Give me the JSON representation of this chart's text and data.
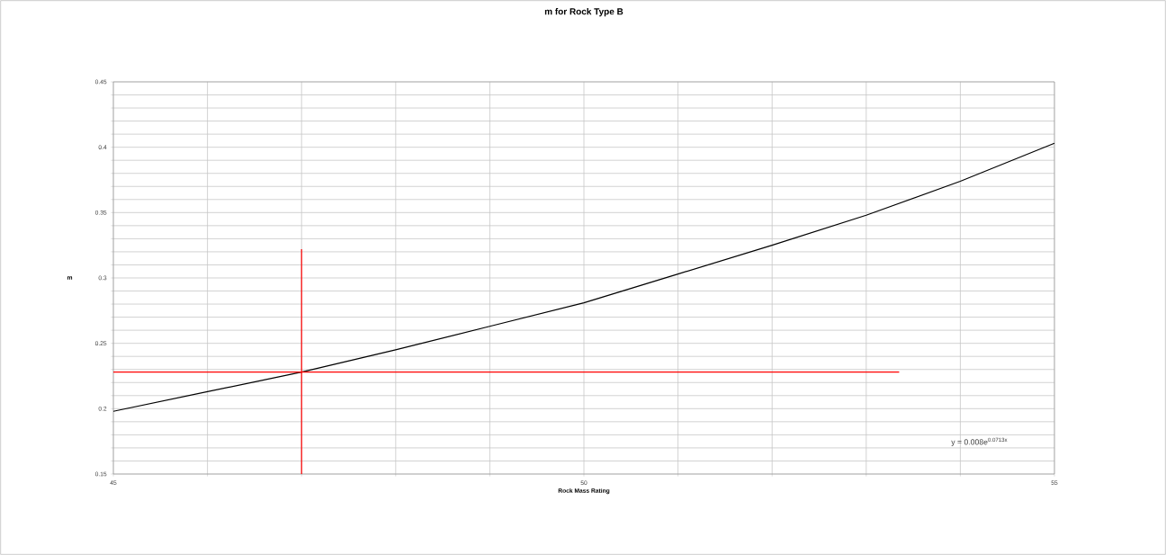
{
  "chart_data": {
    "type": "line",
    "title": "m for Rock Type B",
    "xlabel": "Rock Mass Rating",
    "ylabel": "m",
    "annotations": [
      "y = 0.008e$^{0.0713x}$"
    ],
    "xlim": [
      45,
      55
    ],
    "xticks": [
      45,
      {
        "value": 46,
        "label": null
      },
      {
        "value": 47,
        "label": null
      },
      {
        "value": 48,
        "label": null
      },
      {
        "value": 49,
        "label": null
      },
      50,
      {
        "value": 51,
        "label": null
      },
      {
        "value": 52,
        "label": null
      },
      {
        "value": 53,
        "label": null
      },
      {
        "value": 54,
        "label": null
      },
      55
    ],
    "ylim": [
      0.15,
      0.45
    ],
    "yticks": [
      0.15,
      {
        "value": 0.16,
        "label": null
      },
      {
        "value": 0.17,
        "label": null
      },
      {
        "value": 0.18,
        "label": null
      },
      {
        "value": 0.19,
        "label": null
      },
      0.2,
      {
        "value": 0.21,
        "label": null
      },
      {
        "value": 0.22,
        "label": null
      },
      {
        "value": 0.23,
        "label": null
      },
      {
        "value": 0.24,
        "label": null
      },
      0.25,
      {
        "value": 0.26,
        "label": null
      },
      {
        "value": 0.27,
        "label": null
      },
      {
        "value": 0.28,
        "label": null
      },
      {
        "value": 0.29,
        "label": null
      },
      0.3,
      {
        "value": 0.31,
        "label": null
      },
      {
        "value": 0.32,
        "label": null
      },
      {
        "value": 0.33,
        "label": null
      },
      {
        "value": 0.34,
        "label": null
      },
      0.35,
      {
        "value": 0.36,
        "label": null
      },
      {
        "value": 0.37,
        "label": null
      },
      {
        "value": 0.38,
        "label": null
      },
      {
        "value": 0.39,
        "label": null
      },
      0.4,
      {
        "value": 0.41,
        "label": null
      },
      {
        "value": 0.42,
        "label": null
      },
      {
        "value": 0.43,
        "label": null
      },
      {
        "value": 0.44,
        "label": null
      },
      0.45
    ],
    "grid": true,
    "series": [
      {
        "color": "#000000",
        "x": [
          45,
          46,
          47,
          48,
          49,
          50,
          51,
          52,
          53,
          54,
          55
        ],
        "values": [
          0.198,
          0.213,
          0.228,
          0.245,
          0.263,
          0.281,
          0.303,
          0.325,
          0.348,
          0.374,
          0.403
        ]
      },
      {
        "color": "#ff0000",
        "x": [
          47,
          47
        ],
        "values": [
          0.15,
          0.322
        ]
      },
      {
        "color": "#ff0000",
        "x": [
          45,
          53.35
        ],
        "values": [
          0.228,
          0.228
        ]
      }
    ]
  }
}
